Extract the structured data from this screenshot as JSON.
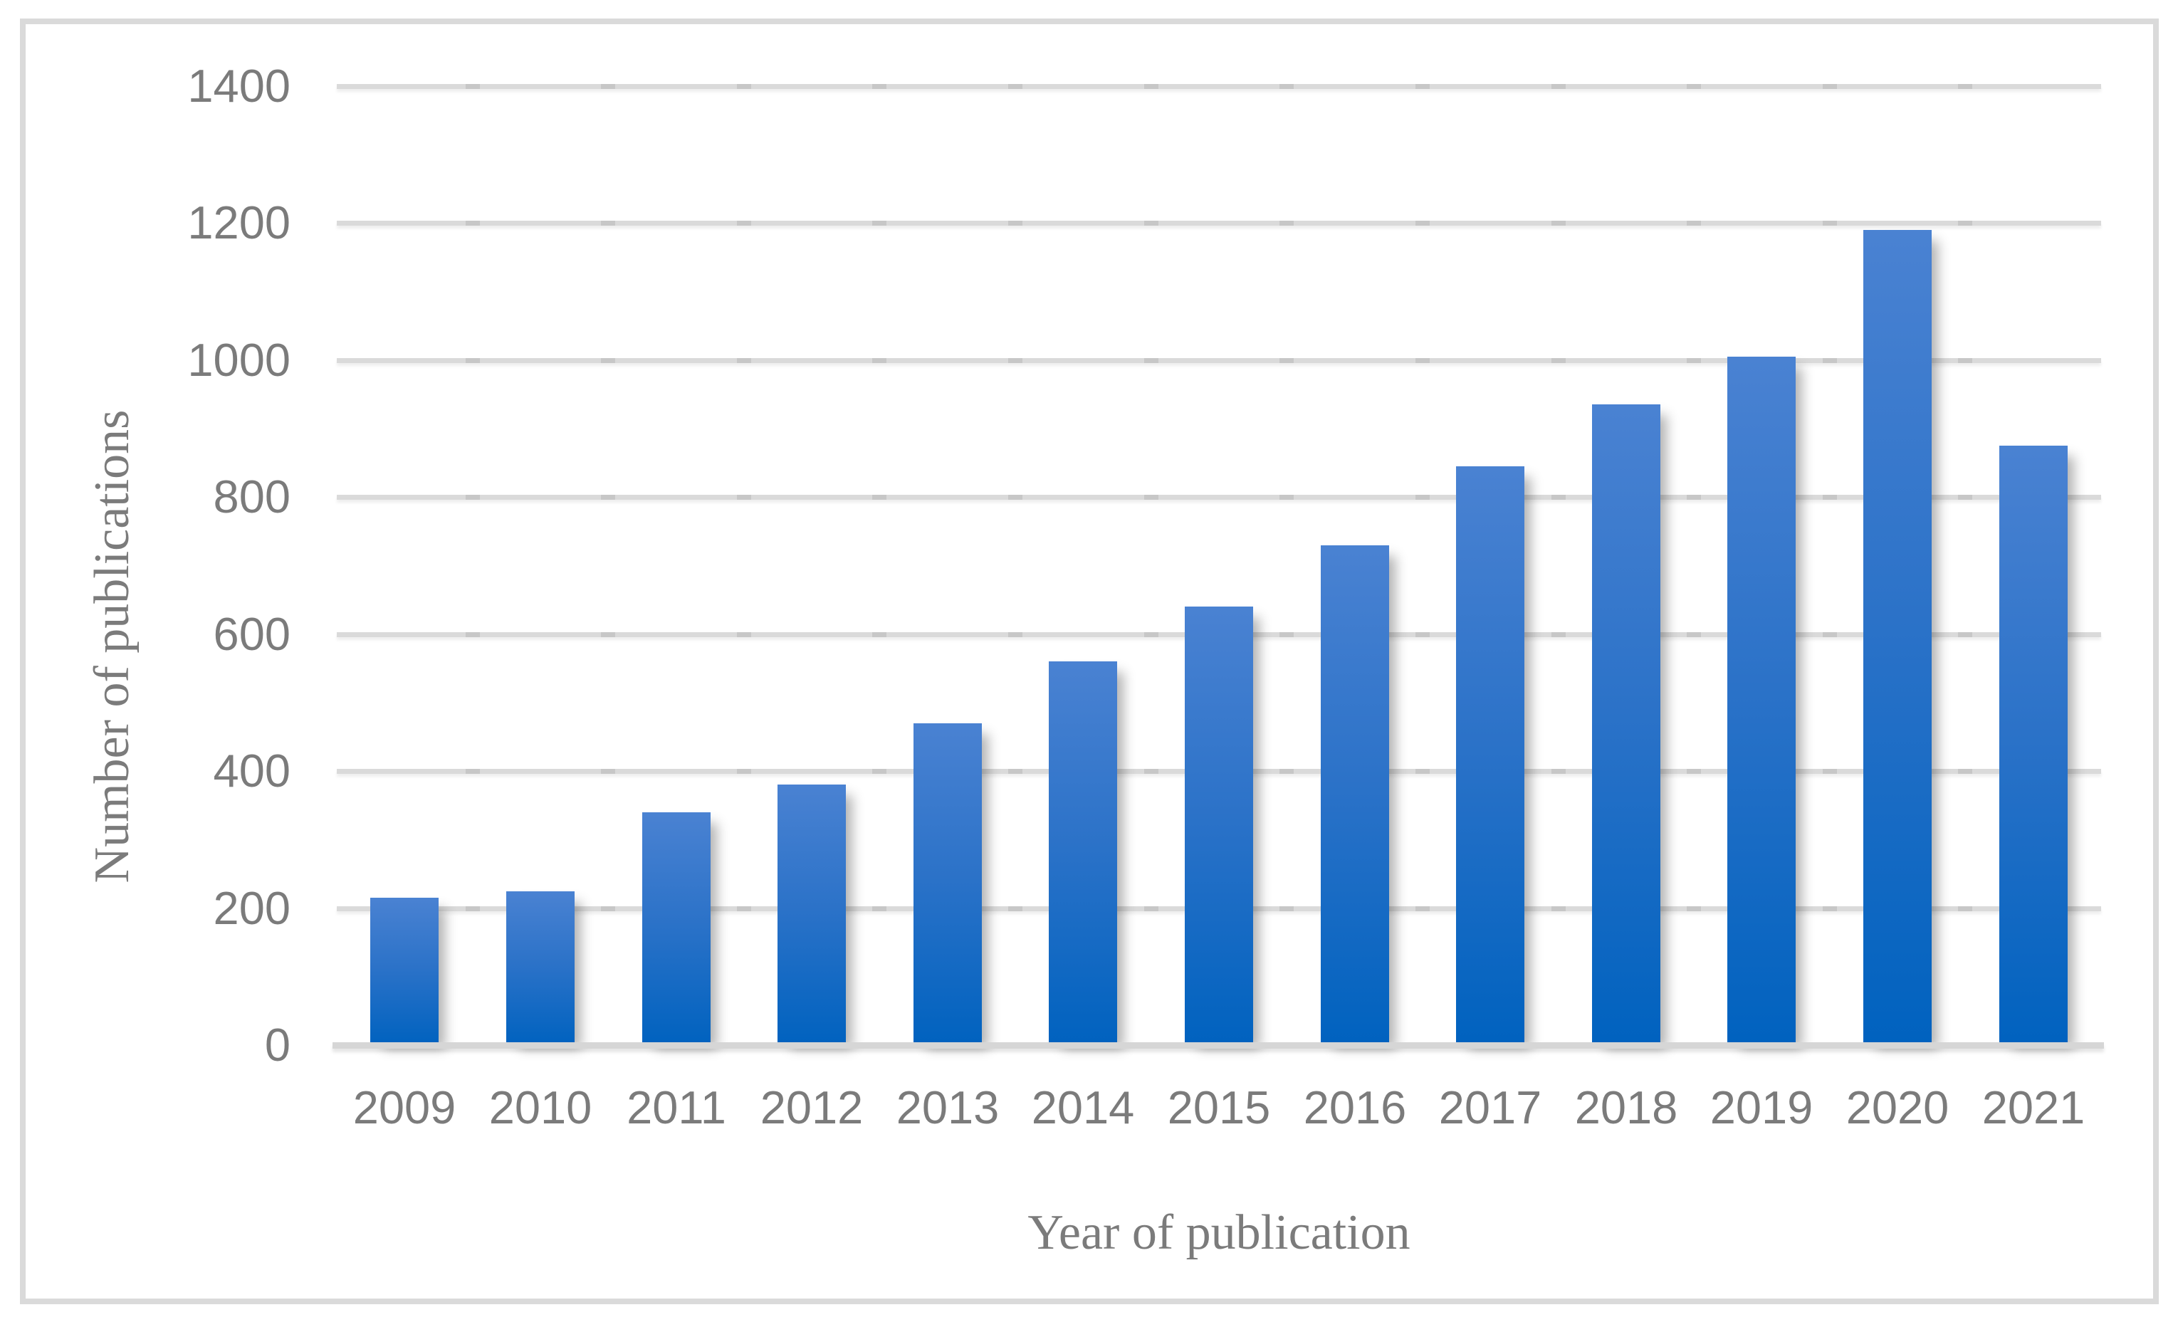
{
  "figure": {
    "background_color": "#ffffff",
    "border_color": "#dadada",
    "text_color": "#7b7b7b"
  },
  "chart_data": {
    "type": "bar",
    "title": "",
    "xlabel": "Year of publication",
    "ylabel": "Number of publications",
    "categories": [
      "2009",
      "2010",
      "2011",
      "2012",
      "2013",
      "2014",
      "2015",
      "2016",
      "2017",
      "2018",
      "2019",
      "2020",
      "2021"
    ],
    "values": [
      215,
      225,
      340,
      380,
      470,
      560,
      640,
      730,
      845,
      935,
      1005,
      1190,
      875
    ],
    "ylim": [
      0,
      1400
    ],
    "yticks": [
      0,
      200,
      400,
      600,
      800,
      1000,
      1200,
      1400
    ],
    "ytick_labels": [
      "0",
      "200",
      "400",
      "600",
      "800",
      "1000",
      "1200",
      "1400"
    ],
    "grid": true,
    "legend": false,
    "bar_color_top": "#4a82d2",
    "bar_color_bottom": "#0062bf",
    "gridline_color": "#dadada",
    "axis_line_color": "#d6d6d6"
  }
}
